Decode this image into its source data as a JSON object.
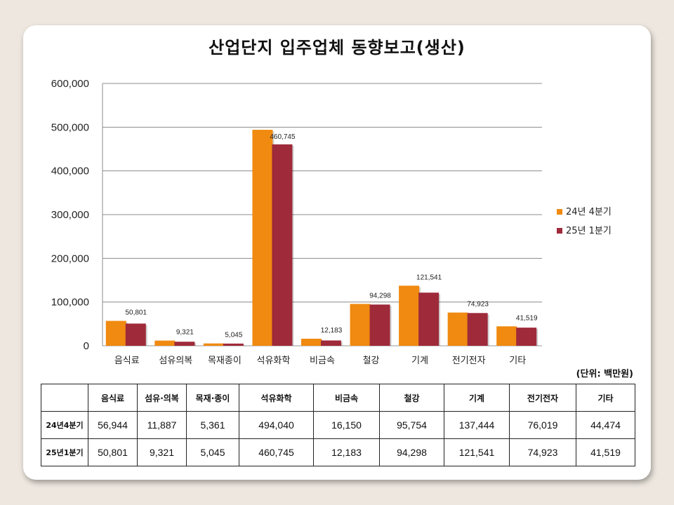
{
  "title": "산업단지 입주업체 동향보고(생산)",
  "unit": "(단위: 백만원)",
  "chart_data": {
    "type": "bar",
    "categories": [
      "음식료",
      "섬유의복",
      "목재종이",
      "석유화학",
      "비금속",
      "철강",
      "기계",
      "전기전자",
      "기타"
    ],
    "series": [
      {
        "name": "24년 4분기",
        "values": [
          56944,
          11887,
          5361,
          494040,
          16150,
          95754,
          137444,
          76019,
          44474
        ],
        "color": "#f08a10"
      },
      {
        "name": "25년 1분기",
        "values": [
          50801,
          9321,
          5045,
          460745,
          12183,
          94298,
          121541,
          74923,
          41519
        ],
        "color": "#9e2a3a"
      }
    ],
    "data_labels": [
      "50,801",
      "9,321",
      "5,045",
      "460,745",
      "12,183",
      "94,298",
      "121,541",
      "74,923",
      "41,519"
    ],
    "y_ticks": [
      "0",
      "100,000",
      "200,000",
      "300,000",
      "400,000",
      "500,000",
      "600,000"
    ],
    "ylim": [
      0,
      600000
    ],
    "grid": true,
    "legend_position": "right"
  },
  "table": {
    "headers": [
      "",
      "음식료",
      "섬유·의복",
      "목재·종이",
      "석유화학",
      "비금속",
      "철강",
      "기계",
      "전기전자",
      "기타"
    ],
    "rows": [
      {
        "label": "24년4분기",
        "values": [
          "56,944",
          "11,887",
          "5,361",
          "494,040",
          "16,150",
          "95,754",
          "137,444",
          "76,019",
          "44,474"
        ]
      },
      {
        "label": "25년1분기",
        "values": [
          "50,801",
          "9,321",
          "5,045",
          "460,745",
          "12,183",
          "94,298",
          "121,541",
          "74,923",
          "41,519"
        ]
      }
    ]
  }
}
